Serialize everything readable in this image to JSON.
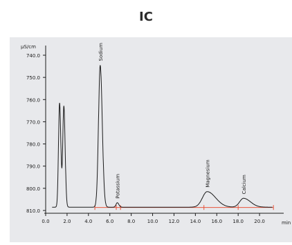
{
  "title": "IC",
  "chart_data": {
    "type": "line",
    "title": "IC",
    "xlabel": "min",
    "ylabel": "µS/cm",
    "xlim": [
      0.0,
      22.0
    ],
    "ylim": [
      740.0,
      810.0
    ],
    "x_ticks": [
      0.0,
      2.0,
      4.0,
      6.0,
      8.0,
      10.0,
      12.0,
      14.0,
      16.0,
      18.0,
      20.0
    ],
    "x_tick_labels": [
      "0.0",
      "2.0",
      "4.0",
      "6.0",
      "8.0",
      "10.0",
      "12.0",
      "14.0",
      "16.0",
      "18.0",
      "20.0"
    ],
    "y_ticks": [
      740.0,
      750.0,
      760.0,
      770.0,
      780.0,
      790.0,
      800.0,
      810.0
    ],
    "y_tick_labels": [
      "740.0",
      "750.0",
      "760.0",
      "770.0",
      "780.0",
      "790.0",
      "800.0",
      "810.0"
    ],
    "baseline_y": 808.5,
    "peaks": [
      {
        "name": "",
        "rt": 1.3,
        "apex_y": 761.5,
        "width": 0.25
      },
      {
        "name": "",
        "rt": 1.7,
        "apex_y": 763.0,
        "width": 0.25
      },
      {
        "name": "Sodium",
        "rt": 5.1,
        "apex_y": 744.5,
        "width": 0.4
      },
      {
        "name": "Potassium",
        "rt": 6.7,
        "apex_y": 806.5,
        "width": 0.3
      },
      {
        "name": "Magnesium",
        "rt": 15.1,
        "apex_y": 801.5,
        "width": 1.1
      },
      {
        "name": "Calcium",
        "rt": 18.5,
        "apex_y": 804.5,
        "width": 0.9
      }
    ],
    "integration_markers": [
      4.6,
      6.6,
      7.0,
      14.8,
      18.0,
      21.3
    ],
    "colors": {
      "trace": "#1a1a1a",
      "integration": "#e8533a",
      "background": "#e8e9ec"
    },
    "grid": false
  }
}
